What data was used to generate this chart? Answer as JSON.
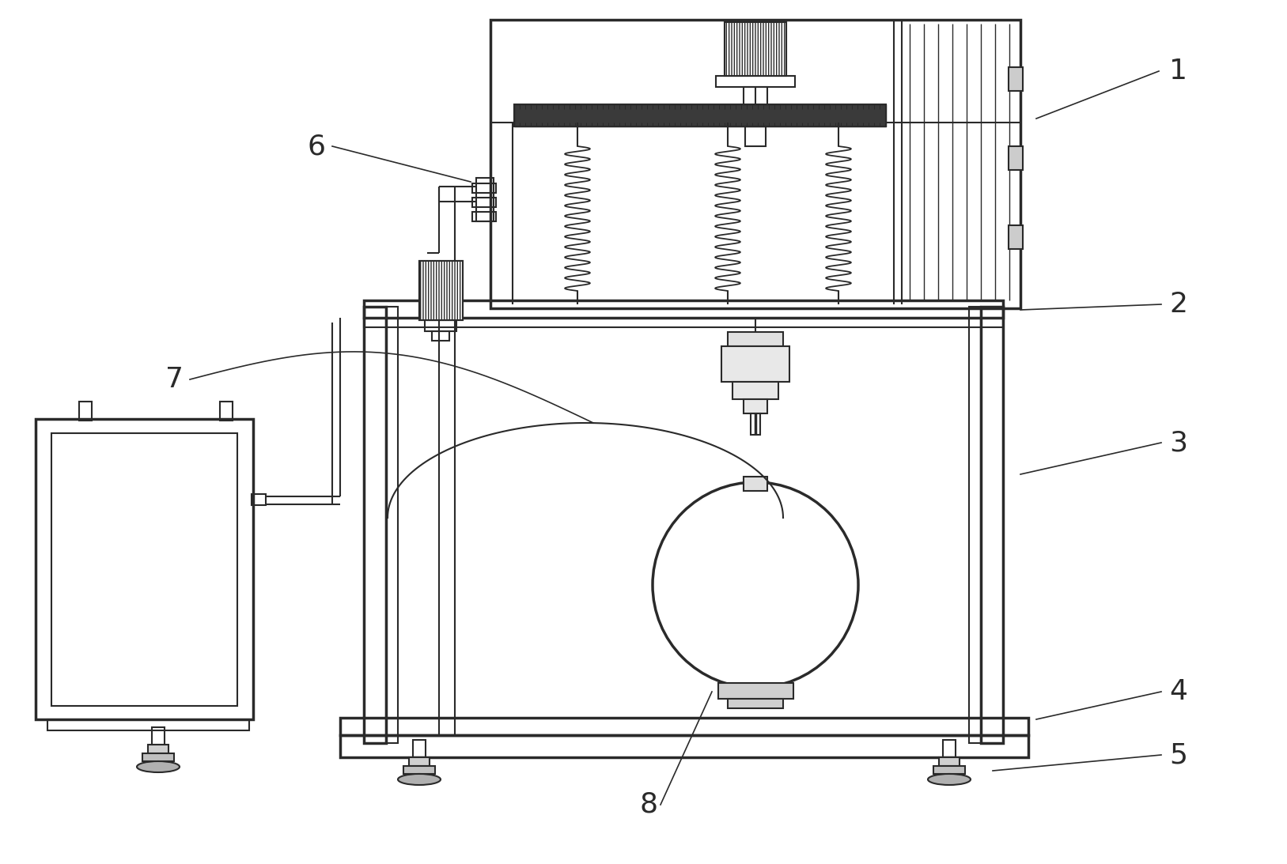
{
  "bg_color": "#ffffff",
  "line_color": "#2a2a2a",
  "lw": 1.5,
  "lw_thick": 2.5,
  "lw_thin": 1.0,
  "label_fs": 26,
  "leader_lw": 1.2
}
